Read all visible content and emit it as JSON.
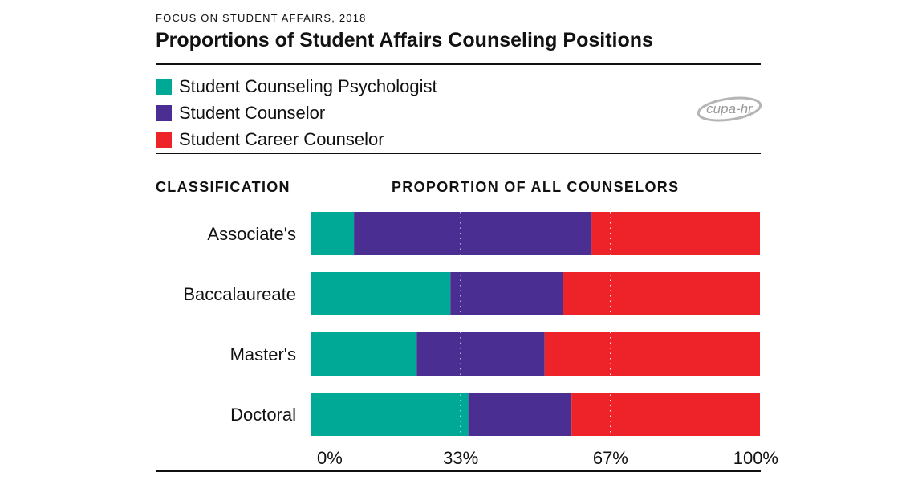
{
  "header": {
    "kicker": "FOCUS ON STUDENT AFFAIRS, 2018",
    "title": "Proportions of Student Affairs Counseling Positions"
  },
  "logo": {
    "text": "cupa-hr"
  },
  "columns": {
    "classification": "CLASSIFICATION",
    "proportion": "PROPORTION OF ALL COUNSELORS"
  },
  "colors": {
    "psychologist": "#00A896",
    "counselor": "#4B2E91",
    "career": "#EE2229"
  },
  "legend": [
    {
      "label": "Student Counseling Psychologist",
      "color": "#00A896"
    },
    {
      "label": "Student Counselor",
      "color": "#4B2E91"
    },
    {
      "label": "Student Career Counselor",
      "color": "#EE2229"
    }
  ],
  "chart_data": {
    "type": "bar",
    "orientation": "horizontal",
    "stacked": "100%",
    "categories": [
      "Associate's",
      "Baccalaureate",
      "Master's",
      "Doctoral"
    ],
    "series": [
      {
        "name": "Student Counseling Psychologist",
        "color": "#00A896",
        "values": [
          9.5,
          31,
          23.5,
          35
        ]
      },
      {
        "name": "Student Counselor",
        "color": "#4B2E91",
        "values": [
          53,
          25,
          28.5,
          23
        ]
      },
      {
        "name": "Student Career Counselor",
        "color": "#EE2229",
        "values": [
          37.5,
          44,
          48,
          42
        ]
      }
    ],
    "xlim": [
      0,
      100
    ],
    "xticks": [
      "0%",
      "33%",
      "67%",
      "100%"
    ],
    "xtick_values": [
      0,
      33.3,
      66.7,
      100
    ],
    "gridlines": [
      33.3,
      66.7
    ],
    "grid": "dotted vertical reference lines",
    "legend_position": "top-left"
  }
}
